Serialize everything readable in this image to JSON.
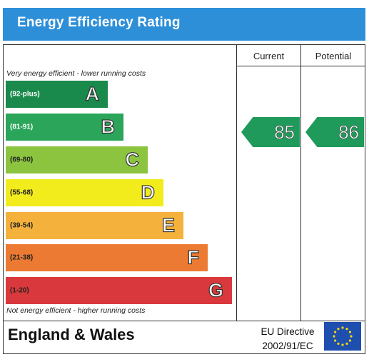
{
  "title": "Energy Efficiency Rating",
  "columns": {
    "current": "Current",
    "potential": "Potential"
  },
  "top_note": "Very energy efficient - lower running costs",
  "bottom_note": "Not energy efficient - higher running costs",
  "bands": [
    {
      "letter": "A",
      "range": "(92-plus)",
      "color": "#1a8a4c",
      "range_color": "#ffffff"
    },
    {
      "letter": "B",
      "range": "(81-91)",
      "color": "#2aa55a",
      "range_color": "#ffffff"
    },
    {
      "letter": "C",
      "range": "(69-80)",
      "color": "#8cc43f",
      "range_color": "#222222"
    },
    {
      "letter": "D",
      "range": "(55-68)",
      "color": "#f2ec1c",
      "range_color": "#222222"
    },
    {
      "letter": "E",
      "range": "(39-54)",
      "color": "#f4b23c",
      "range_color": "#222222"
    },
    {
      "letter": "F",
      "range": "(21-38)",
      "color": "#ec7a32",
      "range_color": "#222222"
    },
    {
      "letter": "G",
      "range": "(1-20)",
      "color": "#d9393c",
      "range_color": "#222222"
    }
  ],
  "ratings": {
    "current": {
      "value": "85",
      "band": "B",
      "color": "#1f9a5a"
    },
    "potential": {
      "value": "86",
      "band": "B",
      "color": "#1f9a5a"
    }
  },
  "footer": {
    "country": "England & Wales",
    "directive_line1": "EU Directive",
    "directive_line2": "2002/91/EC"
  },
  "colors": {
    "title_bar": "#2d8fd8",
    "eu_flag": "#1f4fae",
    "eu_stars": "#f5d70a"
  }
}
